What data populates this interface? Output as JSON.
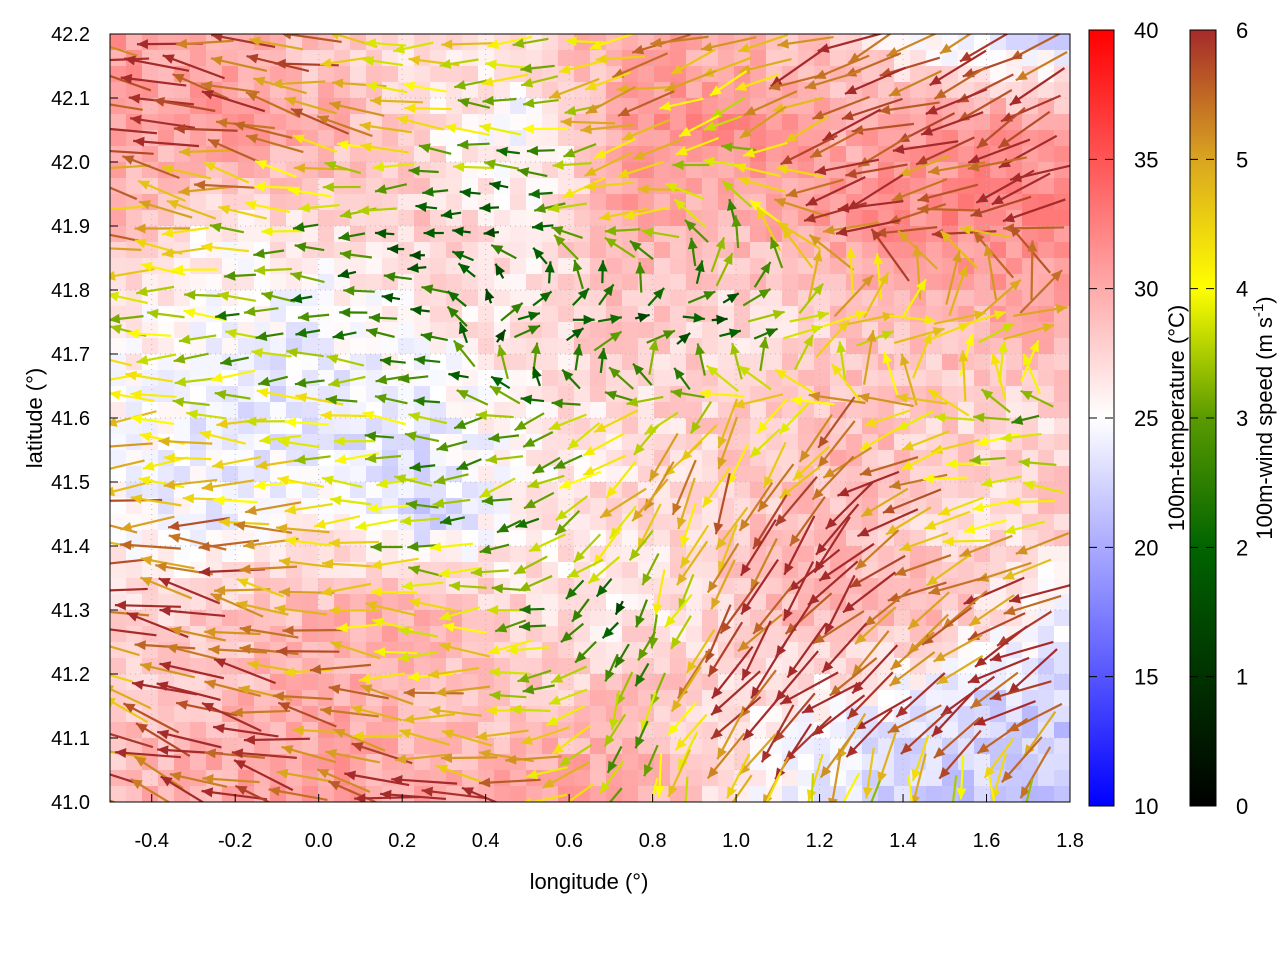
{
  "chart_data": {
    "type": "heatmap",
    "title": "",
    "xlabel": "longitude (°)",
    "ylabel": "latitude (°)",
    "xlim": [
      -0.5,
      1.8
    ],
    "ylim": [
      41.0,
      42.2
    ],
    "xticks": [
      "-0.4",
      "-0.2",
      "0.0",
      "0.2",
      "0.4",
      "0.6",
      "0.8",
      "1.0",
      "1.2",
      "1.4",
      "1.6",
      "1.8"
    ],
    "yticks": [
      "41.0",
      "41.1",
      "41.2",
      "41.3",
      "41.4",
      "41.5",
      "41.6",
      "41.7",
      "41.8",
      "41.9",
      "42.0",
      "42.1",
      "42.2"
    ],
    "temperature_colorbar": {
      "label": "100m-temperature (°C)",
      "range": [
        10,
        40
      ],
      "ticks": [
        "10",
        "15",
        "20",
        "25",
        "30",
        "35",
        "40"
      ],
      "colors": [
        "#0000ff",
        "#ffffff",
        "#ff0000"
      ]
    },
    "wind_colorbar": {
      "label_main": "100m-wind speed (m s",
      "label_sup": "-1",
      "label_end": ")",
      "range": [
        0,
        6
      ],
      "ticks": [
        "0",
        "1",
        "2",
        "3",
        "4",
        "5",
        "6"
      ],
      "colors": [
        "#000000",
        "#006400",
        "#ffff00",
        "#daa520",
        "#a52a2a"
      ]
    },
    "grid_lon": [
      -0.5,
      -0.25,
      0,
      0.25,
      0.5,
      0.75,
      1.0,
      1.25,
      1.5,
      1.75
    ],
    "grid_lat": [
      42.2,
      42.05,
      41.9,
      41.75,
      41.6,
      41.45,
      41.3,
      41.15,
      41.0
    ],
    "temperature": [
      [
        31,
        30,
        28,
        27,
        28,
        30,
        29,
        28,
        24,
        22
      ],
      [
        30,
        31,
        30,
        27,
        24,
        31,
        32,
        30,
        31,
        31
      ],
      [
        30,
        26,
        27,
        28,
        26,
        30,
        29,
        31,
        32,
        32
      ],
      [
        26,
        25,
        24,
        26,
        27,
        28,
        27,
        28,
        29,
        30
      ],
      [
        25,
        24,
        23,
        24,
        26,
        27,
        28,
        29,
        28,
        27
      ],
      [
        25,
        24,
        26,
        22,
        26,
        27,
        28,
        29,
        27,
        28
      ],
      [
        27,
        28,
        29,
        30,
        27,
        26,
        28,
        30,
        29,
        25
      ],
      [
        28,
        29,
        30,
        29,
        28,
        29,
        27,
        25,
        23,
        22
      ],
      [
        29,
        30,
        31,
        30,
        31,
        30,
        26,
        23,
        22,
        22
      ]
    ],
    "wind_speed": [
      [
        6,
        6,
        5,
        4,
        4,
        5,
        5,
        6,
        6,
        6
      ],
      [
        6,
        6,
        5,
        4,
        3,
        5,
        4,
        6,
        6,
        6
      ],
      [
        5,
        4,
        3,
        2,
        2,
        4,
        3,
        6,
        5,
        6
      ],
      [
        4,
        3,
        2,
        2,
        2,
        2,
        2,
        4,
        4,
        5
      ],
      [
        5,
        4,
        4,
        3,
        3,
        4,
        4,
        5,
        4,
        3
      ],
      [
        5,
        5,
        4,
        3,
        3,
        5,
        5,
        6,
        5,
        4
      ],
      [
        6,
        6,
        5,
        4,
        3,
        2,
        6,
        6,
        5,
        6
      ],
      [
        5,
        6,
        5,
        5,
        4,
        3,
        6,
        6,
        6,
        6
      ],
      [
        6,
        6,
        6,
        6,
        5,
        3,
        5,
        4,
        4,
        4
      ]
    ],
    "wind_direction_deg_ccw_from_east": [
      [
        170,
        170,
        175,
        180,
        180,
        190,
        200,
        200,
        200,
        210
      ],
      [
        165,
        165,
        170,
        180,
        180,
        200,
        210,
        200,
        200,
        210
      ],
      [
        175,
        175,
        180,
        180,
        180,
        200,
        90,
        200,
        190,
        190
      ],
      [
        180,
        180,
        180,
        180,
        0,
        0,
        0,
        0,
        0,
        0
      ],
      [
        180,
        180,
        180,
        180,
        200,
        220,
        240,
        220,
        190,
        180
      ],
      [
        180,
        180,
        180,
        180,
        200,
        230,
        250,
        220,
        190,
        180
      ],
      [
        170,
        170,
        175,
        180,
        190,
        250,
        240,
        230,
        210,
        210
      ],
      [
        165,
        165,
        170,
        175,
        180,
        260,
        220,
        210,
        210,
        210
      ],
      [
        160,
        160,
        165,
        170,
        170,
        260,
        250,
        260,
        270,
        270
      ]
    ]
  }
}
